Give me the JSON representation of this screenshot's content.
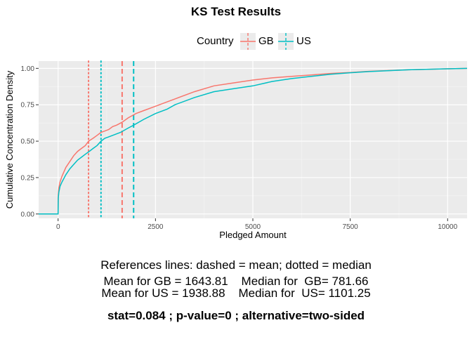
{
  "chart_data": {
    "type": "line",
    "title": "KS Test Results",
    "xlabel": "Pledged Amount",
    "ylabel": "Cumulative Concentration Density",
    "xlim": [
      -500,
      10500
    ],
    "ylim": [
      -0.03,
      1.05
    ],
    "x_ticks": [
      0,
      2500,
      5000,
      7500,
      10000
    ],
    "x_tick_labels": [
      "0",
      "2500",
      "5000",
      "7500",
      "10000"
    ],
    "y_ticks": [
      0.0,
      0.25,
      0.5,
      0.75,
      1.0
    ],
    "y_tick_labels": [
      "0.00",
      "0.25",
      "0.50",
      "0.75",
      "1.00"
    ],
    "grid": true,
    "legend": {
      "title": "Country",
      "position": "top"
    },
    "series": [
      {
        "name": "GB",
        "color": "#F8766D",
        "x": [
          -500,
          0,
          5,
          20,
          50,
          100,
          200,
          300,
          400,
          500,
          600,
          700,
          781.66,
          900,
          1000,
          1100,
          1200,
          1300,
          1400,
          1500,
          1643.81,
          1800,
          2000,
          2200,
          2500,
          2800,
          3000,
          3500,
          4000,
          4500,
          5000,
          5500,
          6000,
          6500,
          7000,
          7500,
          8000,
          9000,
          10000,
          10500
        ],
        "y": [
          0.0,
          0.0,
          0.13,
          0.18,
          0.22,
          0.26,
          0.32,
          0.36,
          0.4,
          0.43,
          0.45,
          0.47,
          0.5,
          0.52,
          0.54,
          0.56,
          0.57,
          0.58,
          0.6,
          0.61,
          0.63,
          0.66,
          0.69,
          0.71,
          0.74,
          0.77,
          0.79,
          0.84,
          0.88,
          0.9,
          0.92,
          0.935,
          0.945,
          0.955,
          0.965,
          0.972,
          0.98,
          0.99,
          0.997,
          1.0
        ]
      },
      {
        "name": "US",
        "color": "#00BFC4",
        "x": [
          -500,
          0,
          5,
          20,
          50,
          100,
          200,
          300,
          400,
          500,
          600,
          700,
          800,
          900,
          1000,
          1101.25,
          1200,
          1300,
          1400,
          1500,
          1600,
          1800,
          1938.88,
          2200,
          2500,
          2800,
          3000,
          3500,
          4000,
          4500,
          5000,
          5500,
          6000,
          6500,
          7000,
          7500,
          8000,
          9000,
          10000,
          10500
        ],
        "y": [
          0.0,
          0.0,
          0.11,
          0.15,
          0.19,
          0.22,
          0.27,
          0.31,
          0.34,
          0.37,
          0.39,
          0.41,
          0.43,
          0.45,
          0.47,
          0.5,
          0.52,
          0.53,
          0.54,
          0.55,
          0.56,
          0.59,
          0.61,
          0.65,
          0.69,
          0.72,
          0.75,
          0.8,
          0.84,
          0.86,
          0.88,
          0.91,
          0.93,
          0.945,
          0.96,
          0.97,
          0.978,
          0.99,
          0.997,
          1.0
        ]
      }
    ],
    "reference_lines": [
      {
        "series": "GB",
        "kind": "mean",
        "style": "dashed",
        "x": 1643.81
      },
      {
        "series": "GB",
        "kind": "median",
        "style": "dotted",
        "x": 781.66
      },
      {
        "series": "US",
        "kind": "mean",
        "style": "dashed",
        "x": 1938.88
      },
      {
        "series": "US",
        "kind": "median",
        "style": "dotted",
        "x": 1101.25
      }
    ]
  },
  "caption": {
    "line1": "References lines: dashed = mean; dotted = median",
    "line2": "Mean for GB = 1643.81    Median for  GB= 781.66",
    "line3": "Mean for US = 1938.88    Median for  US= 1101.25",
    "stats": "stat=0.084 ; p-value=0 ; alternative=two-sided"
  }
}
